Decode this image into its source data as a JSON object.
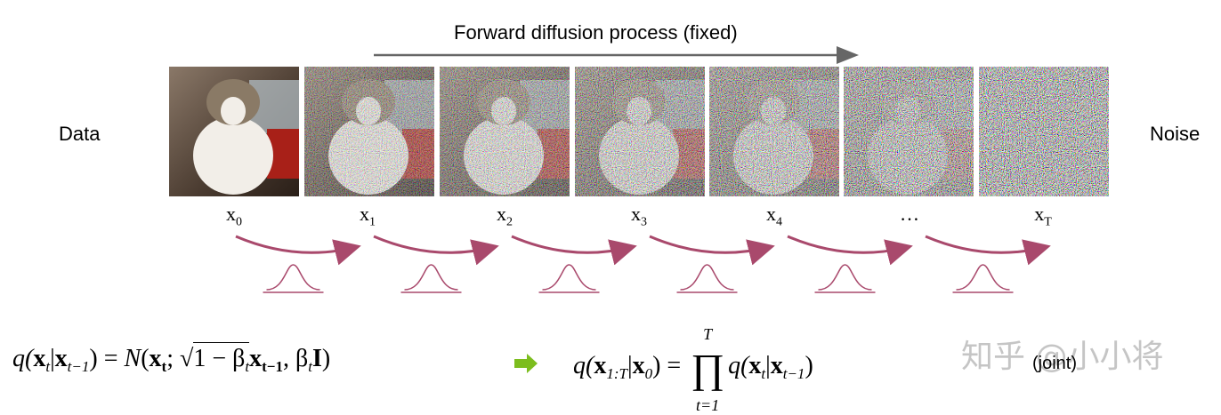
{
  "header": {
    "title": "Forward diffusion process (fixed)"
  },
  "side_labels": {
    "left": "Data",
    "right": "Noise"
  },
  "states": [
    [
      "x",
      "0"
    ],
    [
      "x",
      "1"
    ],
    [
      "x",
      "2"
    ],
    [
      "x",
      "3"
    ],
    [
      "x",
      "4"
    ],
    [
      "…"
    ],
    [
      "x",
      "T"
    ]
  ],
  "equations": {
    "step": {
      "parts": [
        "q(",
        "x",
        "t",
        "|",
        "x",
        "t−1",
        ") = ",
        "N",
        "(",
        "x",
        "t",
        "; ",
        "√",
        "1 − β",
        "t",
        "x",
        "t−1",
        ", β",
        "t",
        "I",
        ")"
      ]
    },
    "joint": {
      "parts": [
        "q(",
        "x",
        "1:T",
        "|",
        "x",
        "0",
        ") = ",
        "∏",
        "T",
        "t=1",
        "q(",
        "x",
        "t",
        "|",
        "x",
        "t−1",
        ")"
      ],
      "note": "(joint)"
    }
  },
  "watermark": "知乎 @小小将"
}
